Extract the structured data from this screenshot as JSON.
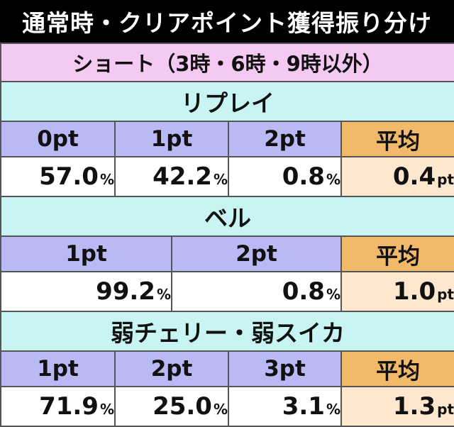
{
  "title": "通常時・クリアポイント獲得振り分け",
  "section": "ショート（3時・6時・9時以外）",
  "groups": {
    "replay": {
      "name": "リプレイ",
      "headers": [
        "0pt",
        "1pt",
        "2pt",
        "平均"
      ],
      "values": [
        "57.0",
        "42.2",
        "0.8",
        "0.4"
      ],
      "units": [
        "%",
        "%",
        "%",
        "pt"
      ]
    },
    "bell": {
      "name": "ベル",
      "headers": [
        "1pt",
        "2pt",
        "平均"
      ],
      "values": [
        "99.2",
        "0.8",
        "1.0"
      ],
      "units": [
        "%",
        "%",
        "pt"
      ]
    },
    "cherry_watermelon": {
      "name": "弱チェリー・弱スイカ",
      "headers": [
        "1pt",
        "2pt",
        "3pt",
        "平均"
      ],
      "values": [
        "71.9",
        "25.0",
        "3.1",
        "1.3"
      ],
      "units": [
        "%",
        "%",
        "%",
        "pt"
      ]
    }
  },
  "colors": {
    "title_bg": "#000000",
    "section_bg": "#f4c9f2",
    "category_bg": "#c9f4f4",
    "header_bg": "#b9b9f3",
    "average_header_bg": "#f3b96a",
    "average_value_bg": "#fde7cf"
  }
}
